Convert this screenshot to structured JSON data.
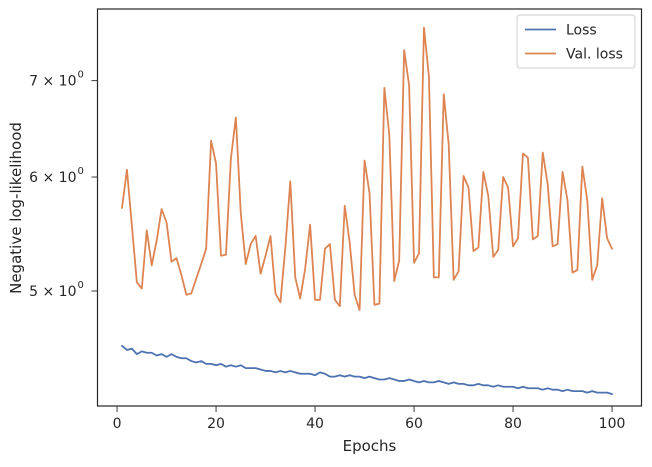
{
  "chart_data": {
    "type": "line",
    "xlabel": "Epochs",
    "ylabel": "Negative log-likelihood",
    "yscale": "log",
    "xlim": [
      -3.95,
      105.95
    ],
    "ylim": [
      4.16,
      7.85
    ],
    "xticks": [
      {
        "value": 0,
        "label": "0"
      },
      {
        "value": 20,
        "label": "20"
      },
      {
        "value": 40,
        "label": "40"
      },
      {
        "value": 60,
        "label": "60"
      },
      {
        "value": 80,
        "label": "80"
      },
      {
        "value": 100,
        "label": "100"
      }
    ],
    "yticks": [
      {
        "value": 5,
        "base": "5 × 10",
        "exp": "0"
      },
      {
        "value": 6,
        "base": "6 × 10",
        "exp": "0"
      },
      {
        "value": 7,
        "base": "7 × 10",
        "exp": "0"
      }
    ],
    "legend": {
      "placement": "top-right"
    },
    "x": [
      1,
      2,
      3,
      4,
      5,
      6,
      7,
      8,
      9,
      10,
      11,
      12,
      13,
      14,
      15,
      16,
      17,
      18,
      19,
      20,
      21,
      22,
      23,
      24,
      25,
      26,
      27,
      28,
      29,
      30,
      31,
      32,
      33,
      34,
      35,
      36,
      37,
      38,
      39,
      40,
      41,
      42,
      43,
      44,
      45,
      46,
      47,
      48,
      49,
      50,
      51,
      52,
      53,
      54,
      55,
      56,
      57,
      58,
      59,
      60,
      61,
      62,
      63,
      64,
      65,
      66,
      67,
      68,
      69,
      70,
      71,
      72,
      73,
      74,
      75,
      76,
      77,
      78,
      79,
      80,
      81,
      82,
      83,
      84,
      85,
      86,
      87,
      88,
      89,
      90,
      91,
      92,
      93,
      94,
      95,
      96,
      97,
      98,
      99,
      100
    ],
    "series": [
      {
        "name": "Loss",
        "color": "#4c72b0",
        "values": [
          4.58,
          4.55,
          4.56,
          4.52,
          4.54,
          4.53,
          4.53,
          4.51,
          4.52,
          4.5,
          4.52,
          4.5,
          4.49,
          4.49,
          4.47,
          4.46,
          4.47,
          4.45,
          4.45,
          4.44,
          4.45,
          4.43,
          4.44,
          4.43,
          4.44,
          4.42,
          4.42,
          4.42,
          4.41,
          4.4,
          4.4,
          4.39,
          4.4,
          4.39,
          4.4,
          4.39,
          4.38,
          4.38,
          4.38,
          4.37,
          4.39,
          4.38,
          4.36,
          4.36,
          4.37,
          4.36,
          4.37,
          4.36,
          4.36,
          4.35,
          4.36,
          4.35,
          4.34,
          4.34,
          4.35,
          4.34,
          4.33,
          4.33,
          4.34,
          4.33,
          4.32,
          4.33,
          4.32,
          4.32,
          4.33,
          4.32,
          4.31,
          4.32,
          4.31,
          4.31,
          4.3,
          4.3,
          4.31,
          4.3,
          4.3,
          4.29,
          4.3,
          4.29,
          4.29,
          4.29,
          4.28,
          4.29,
          4.28,
          4.28,
          4.28,
          4.27,
          4.28,
          4.27,
          4.27,
          4.26,
          4.27,
          4.26,
          4.26,
          4.26,
          4.25,
          4.26,
          4.25,
          4.25,
          4.25,
          4.24
        ]
      },
      {
        "name": "Val. loss",
        "color": "#dd8452",
        "values": [
          5.71,
          6.07,
          5.55,
          5.07,
          5.02,
          5.51,
          5.21,
          5.42,
          5.7,
          5.58,
          5.24,
          5.27,
          5.13,
          4.97,
          4.98,
          5.1,
          5.22,
          5.35,
          6.36,
          6.13,
          5.29,
          5.3,
          6.18,
          6.6,
          5.66,
          5.22,
          5.39,
          5.46,
          5.14,
          5.29,
          5.46,
          4.98,
          4.91,
          5.36,
          5.96,
          5.11,
          4.94,
          5.18,
          5.56,
          4.93,
          4.93,
          5.35,
          5.39,
          4.93,
          4.88,
          5.73,
          5.4,
          4.97,
          4.85,
          6.16,
          5.85,
          4.89,
          4.9,
          6.92,
          6.42,
          5.08,
          5.25,
          7.35,
          6.95,
          5.23,
          5.31,
          7.62,
          7.05,
          5.11,
          5.11,
          6.85,
          6.32,
          5.09,
          5.16,
          6.01,
          5.9,
          5.33,
          5.36,
          6.05,
          5.82,
          5.28,
          5.34,
          6.0,
          5.9,
          5.37,
          5.44,
          6.23,
          6.19,
          5.43,
          5.46,
          6.24,
          5.93,
          5.37,
          5.39,
          6.05,
          5.78,
          5.15,
          5.17,
          6.1,
          5.78,
          5.09,
          5.21,
          5.8,
          5.44,
          5.35
        ]
      }
    ]
  }
}
